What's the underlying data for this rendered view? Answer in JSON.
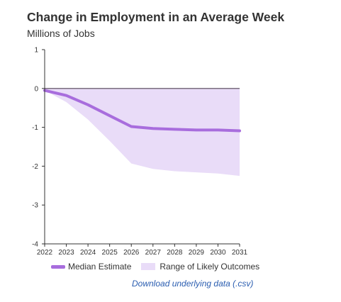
{
  "header": {
    "title": "Change in Employment in an Average Week",
    "subtitle": "Millions of Jobs"
  },
  "legend": {
    "median_label": "Median Estimate",
    "range_label": "Range of Likely Outcomes"
  },
  "download_link": "Download underlying data (.csv)",
  "colors": {
    "median": "#a86ddd",
    "range": "#e9dcf8",
    "zero_line": "#7a6e7e",
    "axis": "#333333",
    "link": "#2a5db0"
  },
  "chart_data": {
    "type": "area",
    "x": [
      2022,
      2023,
      2024,
      2025,
      2026,
      2027,
      2028,
      2029,
      2030,
      2031
    ],
    "xticks": [
      "2022",
      "2023",
      "2024",
      "2025",
      "2026",
      "2027",
      "2028",
      "2029",
      "2030",
      "2031"
    ],
    "ylim": [
      -4,
      1
    ],
    "yticks": [
      1,
      0,
      -1,
      -2,
      -3,
      -4
    ],
    "ytick_labels": [
      "1",
      "0",
      "-1",
      "-2",
      "-3",
      "-4"
    ],
    "grid": false,
    "legend_position": "bottom",
    "series": [
      {
        "name": "Median Estimate",
        "type": "line",
        "values": [
          -0.05,
          -0.18,
          -0.42,
          -0.7,
          -0.98,
          -1.03,
          -1.05,
          -1.07,
          -1.07,
          -1.09
        ]
      },
      {
        "name": "Range of Likely Outcomes",
        "type": "band",
        "upper": [
          0,
          0,
          0,
          0,
          0,
          0,
          0,
          0,
          0,
          0
        ],
        "lower": [
          -0.05,
          -0.35,
          -0.8,
          -1.35,
          -1.93,
          -2.07,
          -2.13,
          -2.16,
          -2.19,
          -2.25
        ]
      }
    ]
  }
}
